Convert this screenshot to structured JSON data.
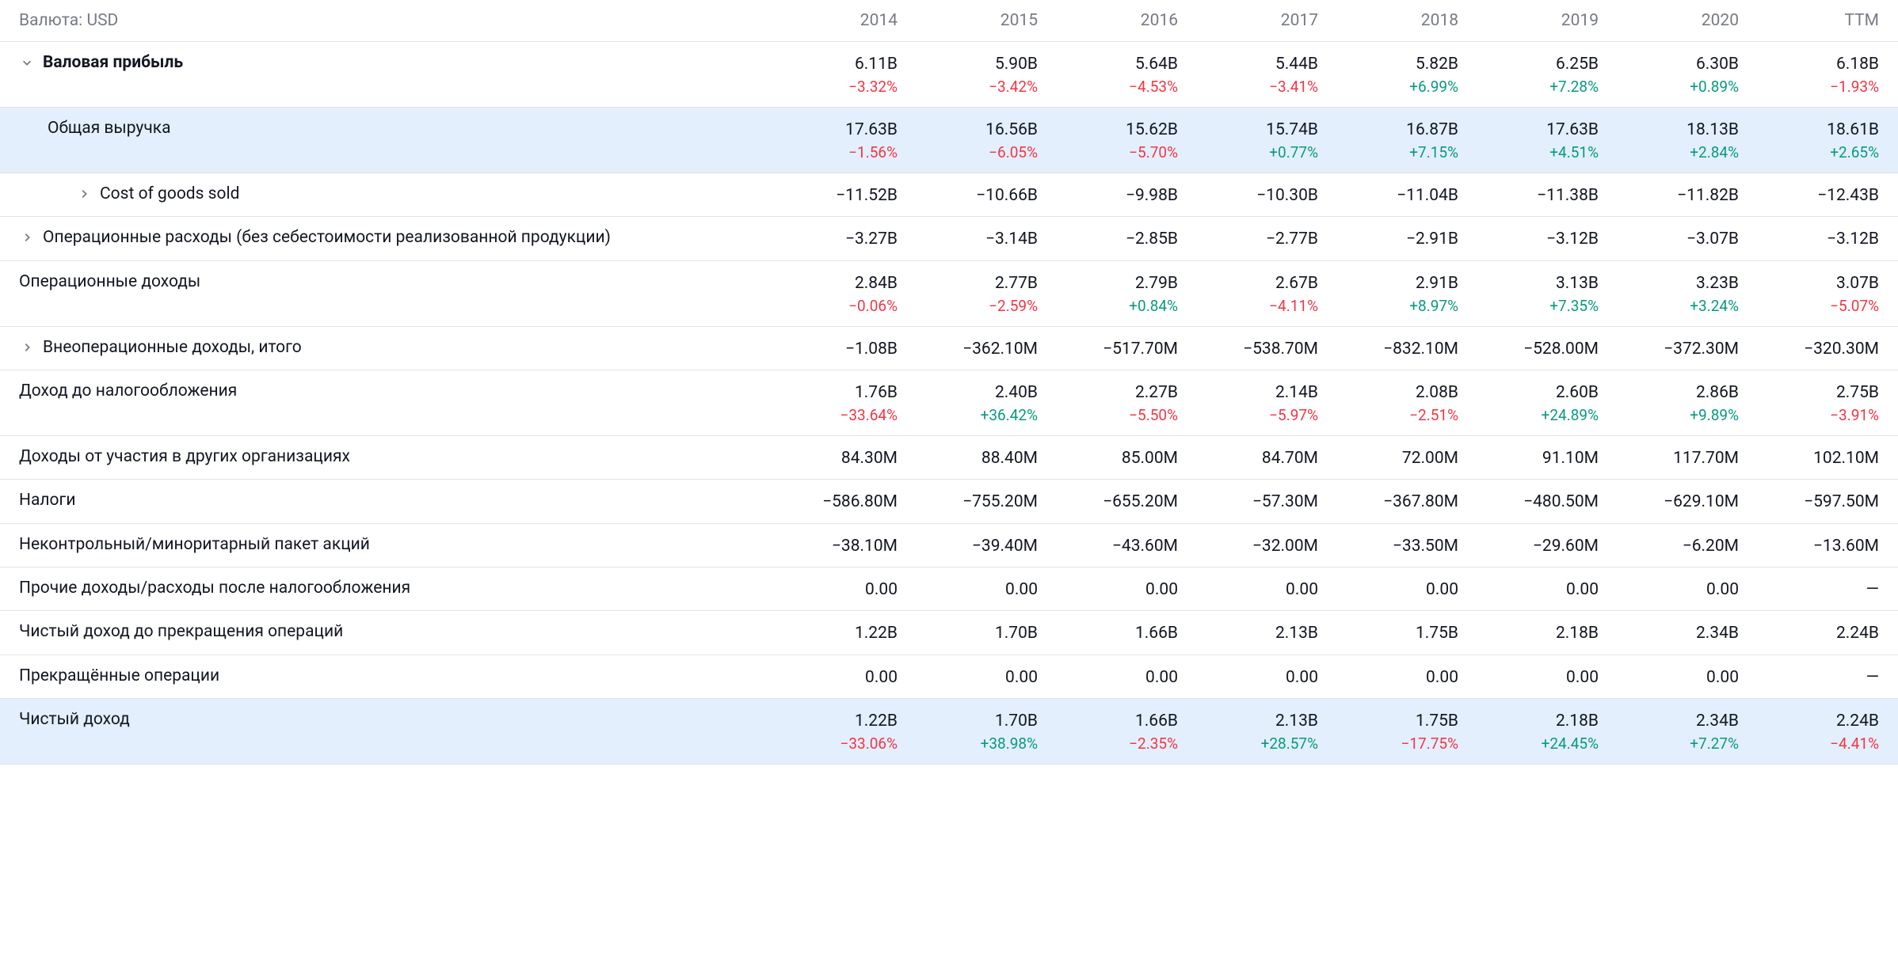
{
  "currency_label": "Валюта: USD",
  "columns": [
    "2014",
    "2015",
    "2016",
    "2017",
    "2018",
    "2019",
    "2020",
    "TTM"
  ],
  "colors": {
    "positive": "#089981",
    "negative": "#f23645",
    "text": "#131722",
    "muted": "#787b86",
    "border": "#e0e3eb",
    "highlight_bg": "#e3effd"
  },
  "rows": [
    {
      "id": "gross_profit",
      "label": "Валовая прибыль",
      "bold": true,
      "expand": "down",
      "indent": 0,
      "highlight": false,
      "values": [
        "6.11B",
        "5.90B",
        "5.64B",
        "5.44B",
        "5.82B",
        "6.25B",
        "6.30B",
        "6.18B"
      ],
      "pct": [
        "−3.32%",
        "−3.42%",
        "−4.53%",
        "−3.41%",
        "+6.99%",
        "+7.28%",
        "+0.89%",
        "−1.93%"
      ],
      "pct_sign": [
        "neg",
        "neg",
        "neg",
        "neg",
        "pos",
        "pos",
        "pos",
        "neg"
      ]
    },
    {
      "id": "total_revenue",
      "label": "Общая выручка",
      "bold": false,
      "expand": null,
      "indent": 1,
      "highlight": true,
      "values": [
        "17.63B",
        "16.56B",
        "15.62B",
        "15.74B",
        "16.87B",
        "17.63B",
        "18.13B",
        "18.61B"
      ],
      "pct": [
        "−1.56%",
        "−6.05%",
        "−5.70%",
        "+0.77%",
        "+7.15%",
        "+4.51%",
        "+2.84%",
        "+2.65%"
      ],
      "pct_sign": [
        "neg",
        "neg",
        "neg",
        "pos",
        "pos",
        "pos",
        "pos",
        "pos"
      ]
    },
    {
      "id": "cogs",
      "label": "Cost of goods sold",
      "bold": false,
      "expand": "right",
      "indent": 2,
      "highlight": false,
      "values": [
        "−11.52B",
        "−10.66B",
        "−9.98B",
        "−10.30B",
        "−11.04B",
        "−11.38B",
        "−11.82B",
        "−12.43B"
      ],
      "pct": null
    },
    {
      "id": "opex",
      "label": "Операционные расходы (без себестоимости реализованной продукции)",
      "bold": false,
      "expand": "right",
      "indent": 0,
      "highlight": false,
      "values": [
        "−3.27B",
        "−3.14B",
        "−2.85B",
        "−2.77B",
        "−2.91B",
        "−3.12B",
        "−3.07B",
        "−3.12B"
      ],
      "pct": null
    },
    {
      "id": "op_income",
      "label": "Операционные доходы",
      "bold": false,
      "expand": null,
      "indent": 0,
      "highlight": false,
      "values": [
        "2.84B",
        "2.77B",
        "2.79B",
        "2.67B",
        "2.91B",
        "3.13B",
        "3.23B",
        "3.07B"
      ],
      "pct": [
        "−0.06%",
        "−2.59%",
        "+0.84%",
        "−4.11%",
        "+8.97%",
        "+7.35%",
        "+3.24%",
        "−5.07%"
      ],
      "pct_sign": [
        "neg",
        "neg",
        "pos",
        "neg",
        "pos",
        "pos",
        "pos",
        "neg"
      ]
    },
    {
      "id": "non_op_income",
      "label": "Внеоперационные доходы, итого",
      "bold": false,
      "expand": "right",
      "indent": 0,
      "highlight": false,
      "values": [
        "−1.08B",
        "−362.10M",
        "−517.70M",
        "−538.70M",
        "−832.10M",
        "−528.00M",
        "−372.30M",
        "−320.30M"
      ],
      "pct": null
    },
    {
      "id": "pretax_income",
      "label": "Доход до налогообложения",
      "bold": false,
      "expand": null,
      "indent": 0,
      "highlight": false,
      "values": [
        "1.76B",
        "2.40B",
        "2.27B",
        "2.14B",
        "2.08B",
        "2.60B",
        "2.86B",
        "2.75B"
      ],
      "pct": [
        "−33.64%",
        "+36.42%",
        "−5.50%",
        "−5.97%",
        "−2.51%",
        "+24.89%",
        "+9.89%",
        "−3.91%"
      ],
      "pct_sign": [
        "neg",
        "pos",
        "neg",
        "neg",
        "neg",
        "pos",
        "pos",
        "neg"
      ]
    },
    {
      "id": "equity_earnings",
      "label": "Доходы от участия в других организациях",
      "bold": false,
      "expand": null,
      "indent": 0,
      "highlight": false,
      "values": [
        "84.30M",
        "88.40M",
        "85.00M",
        "84.70M",
        "72.00M",
        "91.10M",
        "117.70M",
        "102.10M"
      ],
      "pct": null
    },
    {
      "id": "taxes",
      "label": "Налоги",
      "bold": false,
      "expand": null,
      "indent": 0,
      "highlight": false,
      "values": [
        "−586.80M",
        "−755.20M",
        "−655.20M",
        "−57.30M",
        "−367.80M",
        "−480.50M",
        "−629.10M",
        "−597.50M"
      ],
      "pct": null
    },
    {
      "id": "minority_interest",
      "label": "Неконтрольный/миноритарный пакет акций",
      "bold": false,
      "expand": null,
      "indent": 0,
      "highlight": false,
      "values": [
        "−38.10M",
        "−39.40M",
        "−43.60M",
        "−32.00M",
        "−33.50M",
        "−29.60M",
        "−6.20M",
        "−13.60M"
      ],
      "pct": null
    },
    {
      "id": "other_after_tax",
      "label": "Прочие доходы/расходы после налогообложения",
      "bold": false,
      "expand": null,
      "indent": 0,
      "highlight": false,
      "values": [
        "0.00",
        "0.00",
        "0.00",
        "0.00",
        "0.00",
        "0.00",
        "0.00",
        "—"
      ],
      "pct": null
    },
    {
      "id": "net_income_cont",
      "label": "Чистый доход до прекращения операций",
      "bold": false,
      "expand": null,
      "indent": 0,
      "highlight": false,
      "values": [
        "1.22B",
        "1.70B",
        "1.66B",
        "2.13B",
        "1.75B",
        "2.18B",
        "2.34B",
        "2.24B"
      ],
      "pct": null
    },
    {
      "id": "discontinued_ops",
      "label": "Прекращённые операции",
      "bold": false,
      "expand": null,
      "indent": 0,
      "highlight": false,
      "values": [
        "0.00",
        "0.00",
        "0.00",
        "0.00",
        "0.00",
        "0.00",
        "0.00",
        "—"
      ],
      "pct": null
    },
    {
      "id": "net_income",
      "label": "Чистый доход",
      "bold": false,
      "expand": null,
      "indent": 0,
      "highlight": true,
      "values": [
        "1.22B",
        "1.70B",
        "1.66B",
        "2.13B",
        "1.75B",
        "2.18B",
        "2.34B",
        "2.24B"
      ],
      "pct": [
        "−33.06%",
        "+38.98%",
        "−2.35%",
        "+28.57%",
        "−17.75%",
        "+24.45%",
        "+7.27%",
        "−4.41%"
      ],
      "pct_sign": [
        "neg",
        "pos",
        "neg",
        "pos",
        "neg",
        "pos",
        "pos",
        "neg"
      ]
    }
  ]
}
